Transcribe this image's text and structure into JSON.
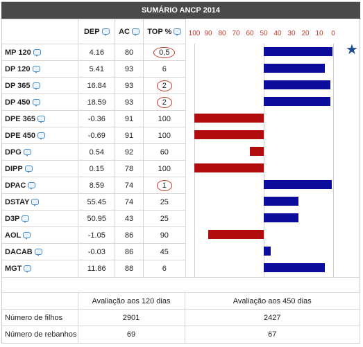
{
  "title": "SUMÁRIO ANCP 2014",
  "headers": {
    "dep": "DEP",
    "ac": "AC",
    "top": "TOP %"
  },
  "axis_ticks": [
    "100",
    "90",
    "80",
    "70",
    "60",
    "50",
    "40",
    "30",
    "20",
    "10",
    "0"
  ],
  "rows": [
    {
      "name": "MP 120",
      "dep": "4.16",
      "ac": "80",
      "top": "0,5",
      "top_value": 0.5,
      "circled": true,
      "highlight": true
    },
    {
      "name": "DP 120",
      "dep": "5.41",
      "ac": "93",
      "top": "6",
      "top_value": 6,
      "circled": false
    },
    {
      "name": "DP 365",
      "dep": "16.84",
      "ac": "93",
      "top": "2",
      "top_value": 2,
      "circled": true
    },
    {
      "name": "DP 450",
      "dep": "18.59",
      "ac": "93",
      "top": "2",
      "top_value": 2,
      "circled": true
    },
    {
      "name": "DPE 365",
      "dep": "-0.36",
      "ac": "91",
      "top": "100",
      "top_value": 100,
      "circled": false
    },
    {
      "name": "DPE 450",
      "dep": "-0.69",
      "ac": "91",
      "top": "100",
      "top_value": 100,
      "circled": false
    },
    {
      "name": "DPG",
      "dep": "0.54",
      "ac": "92",
      "top": "60",
      "top_value": 60,
      "circled": false
    },
    {
      "name": "DIPP",
      "dep": "0.15",
      "ac": "78",
      "top": "100",
      "top_value": 100,
      "circled": false
    },
    {
      "name": "DPAC",
      "dep": "8.59",
      "ac": "74",
      "top": "1",
      "top_value": 1,
      "circled": true
    },
    {
      "name": "DSTAY",
      "dep": "55.45",
      "ac": "74",
      "top": "25",
      "top_value": 25,
      "circled": false
    },
    {
      "name": "D3P",
      "dep": "50.95",
      "ac": "43",
      "top": "25",
      "top_value": 25,
      "circled": false
    },
    {
      "name": "AOL",
      "dep": "-1.05",
      "ac": "86",
      "top": "90",
      "top_value": 90,
      "circled": false
    },
    {
      "name": "DACAB",
      "dep": "-0.03",
      "ac": "86",
      "top": "45",
      "top_value": 45,
      "circled": false
    },
    {
      "name": "MGT",
      "dep": "11.86",
      "ac": "88",
      "top": "6",
      "top_value": 6,
      "circled": false
    }
  ],
  "colors": {
    "above_50": "#0c0c9c",
    "below_50": "#b00c0c",
    "star": "#1f4e8c"
  },
  "footer": {
    "col_120": "Avaliação aos 120 dias",
    "col_450": "Avaliação aos 450 dias",
    "row1_label": "Número de filhos",
    "row1_120": "2901",
    "row1_450": "2427",
    "row2_label": "Número de rebanhos",
    "row2_120": "69",
    "row2_450": "67"
  }
}
